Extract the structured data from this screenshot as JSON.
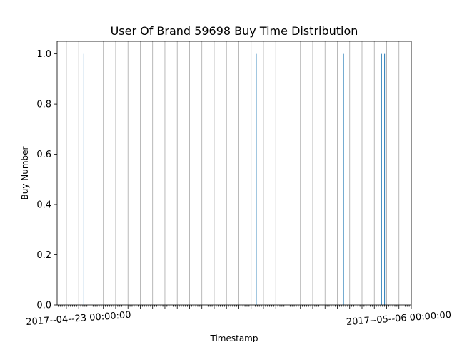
{
  "colors": {
    "bar": "#1f77b4",
    "grid": "#a8a8a8",
    "axis": "#000000"
  },
  "chart_data": {
    "type": "bar",
    "title": "User Of Brand 59698 Buy Time Distribution",
    "xlabel": "Timestamp",
    "ylabel": "Buy Number",
    "ylim": [
      0,
      1.05
    ],
    "xlim": [
      "2017-04-22 03:00:00",
      "2017-05-06 12:00:00"
    ],
    "y_ticks": [
      0.0,
      0.2,
      0.4,
      0.6,
      0.8,
      1.0
    ],
    "y_tick_labels": [
      "0.0",
      "0.2",
      "0.4",
      "0.6",
      "0.8",
      "1.0"
    ],
    "x_tick_labels": [
      {
        "at": "2017-04-23 00:00:00",
        "text": "2017--04--23 00:00:00"
      },
      {
        "at": "2017-05-06 00:00:00",
        "text": "2017--05--06 00:00:00"
      }
    ],
    "grid": "x",
    "bars": [
      {
        "x": "2017-04-23 05:00:00",
        "value": 1
      },
      {
        "x": "2017-04-30 05:00:00",
        "value": 1
      },
      {
        "x": "2017-05-03 18:00:00",
        "value": 1
      },
      {
        "x": "2017-05-05 07:00:00",
        "value": 1
      },
      {
        "x": "2017-05-05 10:00:00",
        "value": 1
      }
    ]
  }
}
